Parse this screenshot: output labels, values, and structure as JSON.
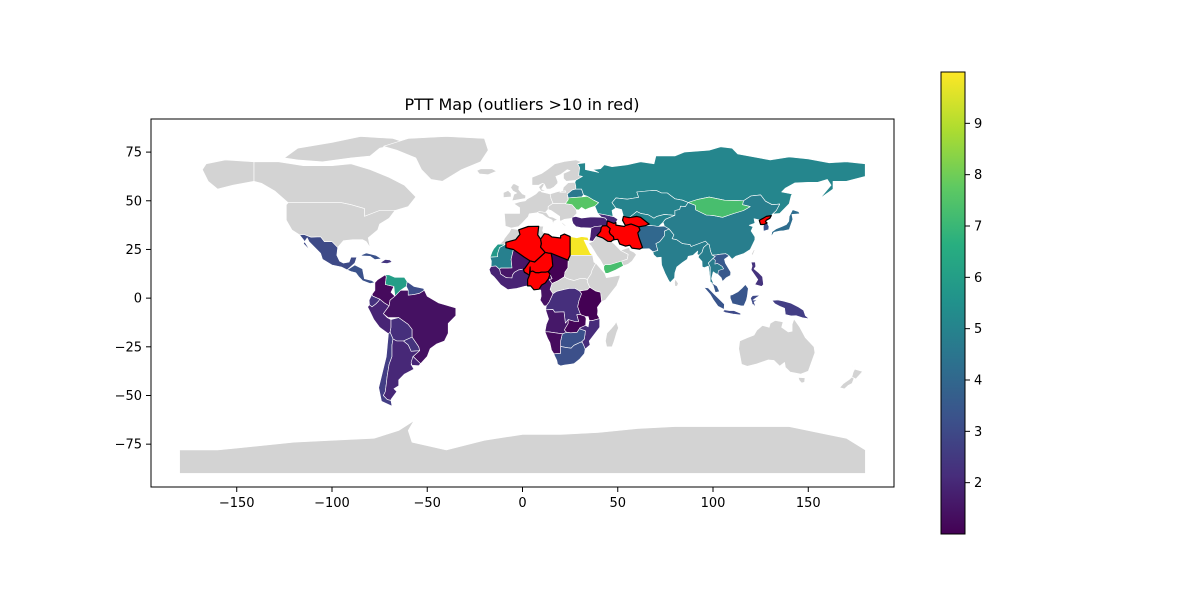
{
  "chart_data": {
    "type": "choropleth-map",
    "title": "PTT Map (outliers >10 in red)",
    "xlabel": "",
    "ylabel": "",
    "xlim": [
      -195,
      195
    ],
    "ylim": [
      -97,
      92
    ],
    "xticks": [
      -150,
      -100,
      -50,
      0,
      50,
      100,
      150
    ],
    "xtick_labels": [
      "−150",
      "−100",
      "−50",
      "0",
      "50",
      "100",
      "150"
    ],
    "yticks": [
      75,
      50,
      25,
      0,
      -25,
      -50,
      -75
    ],
    "ytick_labels": [
      "75",
      "50",
      "25",
      "0",
      "−25",
      "−50",
      "−75"
    ],
    "grid": false,
    "colorbar": {
      "cmap": "viridis",
      "vmin": 1.0,
      "vmax": 10.0,
      "ticks": [
        2,
        3,
        4,
        5,
        6,
        7,
        8,
        9
      ],
      "tick_labels": [
        "2",
        "3",
        "4",
        "5",
        "6",
        "7",
        "8",
        "9"
      ]
    },
    "colors": {
      "no_data": "#d3d3d3",
      "outlier": "#ff0000",
      "outlier_edge": "#000000",
      "border": "#ffffff"
    },
    "outlier_threshold": 10,
    "regions": [
      {
        "name": "Russia",
        "value": 5.1
      },
      {
        "name": "Kazakhstan",
        "value": 5.0
      },
      {
        "name": "Mongolia",
        "value": 7.3
      },
      {
        "name": "China",
        "value": 4.8
      },
      {
        "name": "India",
        "value": 4.8
      },
      {
        "name": "Myanmar",
        "value": 4.8
      },
      {
        "name": "Thailand",
        "value": 4.7
      },
      {
        "name": "Indonesia",
        "value": 2.4
      },
      {
        "name": "Philippines",
        "value": 2.3
      },
      {
        "name": "Japan",
        "value": 4.2
      },
      {
        "name": "North Korea",
        "value": 12,
        "outlier": true
      },
      {
        "name": "Iran",
        "value": 12,
        "outlier": true
      },
      {
        "name": "Turkmenistan",
        "value": 12,
        "outlier": true
      },
      {
        "name": "Iraq",
        "value": 12,
        "outlier": true
      },
      {
        "name": "Algeria",
        "value": 12,
        "outlier": true
      },
      {
        "name": "Libya",
        "value": 12,
        "outlier": true
      },
      {
        "name": "Niger",
        "value": 12,
        "outlier": true
      },
      {
        "name": "Nigeria",
        "value": 12,
        "outlier": true
      },
      {
        "name": "Egypt",
        "value": 9.9
      },
      {
        "name": "Yemen",
        "value": 7.3
      },
      {
        "name": "Western Sahara",
        "value": 5.8
      },
      {
        "name": "Venezuela",
        "value": 6.0
      },
      {
        "name": "Brazil",
        "value": 1.4
      },
      {
        "name": "Argentina",
        "value": 2.0
      },
      {
        "name": "Bolivia",
        "value": 2.2
      },
      {
        "name": "Mexico",
        "value": 3.0
      },
      {
        "name": "Ukraine",
        "value": 7.6
      },
      {
        "name": "Turkey",
        "value": 1.9
      },
      {
        "name": "Democratic Republic of the Congo",
        "value": 2.2
      },
      {
        "name": "South Africa",
        "value": 3.2
      },
      {
        "name": "Mozambique",
        "value": 2.1
      },
      {
        "name": "Angola",
        "value": 1.6
      },
      {
        "name": "Canada",
        "no_data": true
      },
      {
        "name": "United States",
        "no_data": true
      },
      {
        "name": "Australia",
        "no_data": true
      },
      {
        "name": "Antarctica",
        "no_data": true
      },
      {
        "name": "Greenland",
        "no_data": true
      },
      {
        "name": "Saudi Arabia",
        "no_data": true
      }
    ]
  }
}
